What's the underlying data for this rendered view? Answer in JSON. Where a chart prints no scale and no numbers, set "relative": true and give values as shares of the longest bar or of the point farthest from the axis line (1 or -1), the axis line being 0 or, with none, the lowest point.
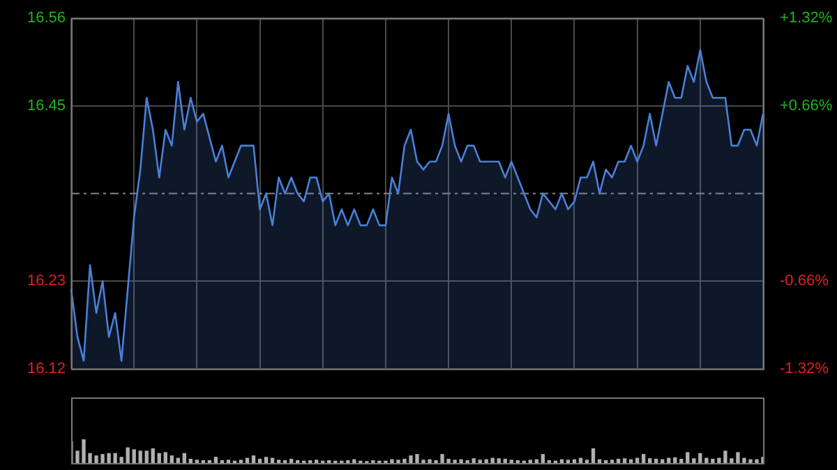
{
  "chart_data": [
    {
      "type": "area",
      "categories": [
        null,
        null,
        null,
        null,
        null,
        null,
        null,
        null,
        null,
        null,
        null,
        null,
        null,
        null,
        null,
        null,
        null,
        null,
        null,
        null,
        null,
        null,
        null,
        null,
        null,
        null,
        null,
        null,
        null,
        null,
        null,
        null,
        null,
        null,
        null,
        null,
        null,
        null,
        null,
        null,
        null,
        null,
        null,
        null,
        null,
        null,
        null,
        null,
        null,
        null,
        null,
        null,
        null,
        null,
        null,
        null,
        null,
        null,
        null,
        null,
        null,
        null,
        null,
        null,
        null,
        null,
        null,
        null,
        null,
        null,
        null,
        null,
        null,
        null,
        null,
        null,
        null,
        null,
        null,
        null,
        null,
        null,
        null,
        null,
        null,
        null,
        null,
        null,
        null,
        null,
        null,
        null,
        null,
        null,
        null,
        null,
        null,
        null,
        null,
        null,
        null,
        null,
        null,
        null,
        null,
        null,
        null,
        null,
        null,
        null,
        null
      ],
      "series": [
        {
          "color": "#4a80d8",
          "values": [
            16.22,
            16.16,
            16.13,
            16.25,
            16.19,
            16.23,
            16.16,
            16.19,
            16.13,
            16.22,
            16.31,
            16.37,
            16.46,
            16.42,
            16.36,
            16.42,
            16.4,
            16.48,
            16.42,
            16.46,
            16.43,
            16.44,
            16.41,
            16.38,
            16.4,
            16.36,
            16.38,
            16.4,
            16.4,
            16.4,
            16.32,
            16.34,
            16.3,
            16.36,
            16.34,
            16.36,
            16.34,
            16.33,
            16.36,
            16.36,
            16.33,
            16.34,
            16.3,
            16.32,
            16.3,
            16.32,
            16.3,
            16.3,
            16.32,
            16.3,
            16.3,
            16.36,
            16.34,
            16.4,
            16.42,
            16.38,
            16.37,
            16.38,
            16.38,
            16.4,
            16.44,
            16.4,
            16.38,
            16.4,
            16.4,
            16.38,
            16.38,
            16.38,
            16.38,
            16.36,
            16.38,
            16.36,
            16.34,
            16.32,
            16.31,
            16.34,
            16.33,
            16.32,
            16.34,
            16.32,
            16.33,
            16.36,
            16.36,
            16.38,
            16.34,
            16.37,
            16.36,
            16.38,
            16.38,
            16.4,
            16.38,
            16.4,
            16.44,
            16.4,
            16.44,
            16.48,
            16.46,
            16.46,
            16.5,
            16.48,
            16.52,
            16.48,
            16.46,
            16.46,
            16.46,
            16.4,
            16.4,
            16.42,
            16.42,
            16.4,
            16.44
          ]
        }
      ],
      "ylim": [
        16.12,
        16.56
      ],
      "yticks": [
        16.12,
        16.23,
        16.45,
        16.56
      ],
      "y2lim": [
        -1.32,
        1.32
      ],
      "y2ticks": [
        {
          "value": -1.32,
          "label": "-1.32%"
        },
        {
          "value": -0.66,
          "label": "-0.66%"
        },
        {
          "value": 0.66,
          "label": "+0.66%"
        },
        {
          "value": 1.32,
          "label": "+1.32%"
        }
      ],
      "ref_lines": [
        {
          "axis": "y",
          "value": 16.34,
          "line_style": "dashed"
        }
      ],
      "grid": true,
      "legend": false,
      "tick_labels": "y",
      "marker": "none",
      "line_style": "solid"
    },
    {
      "type": "bar",
      "relative": true,
      "categories": [
        null,
        null,
        null,
        null,
        null,
        null,
        null,
        null,
        null,
        null,
        null,
        null,
        null,
        null,
        null,
        null,
        null,
        null,
        null,
        null,
        null,
        null,
        null,
        null,
        null,
        null,
        null,
        null,
        null,
        null,
        null,
        null,
        null,
        null,
        null,
        null,
        null,
        null,
        null,
        null,
        null,
        null,
        null,
        null,
        null,
        null,
        null,
        null,
        null,
        null,
        null,
        null,
        null,
        null,
        null,
        null,
        null,
        null,
        null,
        null,
        null,
        null,
        null,
        null,
        null,
        null,
        null,
        null,
        null,
        null,
        null,
        null,
        null,
        null,
        null,
        null,
        null,
        null,
        null,
        null,
        null,
        null,
        null,
        null,
        null,
        null,
        null,
        null,
        null,
        null,
        null,
        null,
        null,
        null,
        null,
        null,
        null,
        null,
        null,
        null,
        null,
        null,
        null,
        null,
        null,
        null,
        null,
        null,
        null,
        null,
        null
      ],
      "series": [
        {
          "color": "#b0b0b0",
          "values": [
            0.9,
            0.5,
            1,
            0.4,
            0.3,
            0.36,
            0.4,
            0.4,
            0.24,
            0.64,
            0.56,
            0.5,
            0.5,
            0.6,
            0.4,
            0.44,
            0.3,
            0.2,
            0.4,
            0.16,
            0.12,
            0.1,
            0.1,
            0.24,
            0.1,
            0.12,
            0.08,
            0.12,
            0.2,
            0.3,
            0.16,
            0.24,
            0.2,
            0.12,
            0.1,
            0.16,
            0.1,
            0.08,
            0.1,
            0.12,
            0.08,
            0.1,
            0.08,
            0.08,
            0.1,
            0.14,
            0.08,
            0.06,
            0.1,
            0.08,
            0.08,
            0.14,
            0.12,
            0.16,
            0.3,
            0.36,
            0.12,
            0.14,
            0.1,
            0.36,
            0.16,
            0.12,
            0.14,
            0.1,
            0.18,
            0.12,
            0.14,
            0.2,
            0.18,
            0.16,
            0.12,
            0.1,
            0.08,
            0.12,
            0.14,
            0.36,
            0.1,
            0.08,
            0.14,
            0.12,
            0.14,
            0.2,
            0.12,
            0.6,
            0.14,
            0.1,
            0.12,
            0.16,
            0.18,
            0.14,
            0.2,
            0.36,
            0.18,
            0.16,
            0.14,
            0.2,
            0.22,
            0.16,
            0.44,
            0.18,
            0.4,
            0.2,
            0.16,
            0.2,
            0.5,
            0.18,
            0.44,
            0.2,
            0.14,
            0.14,
            0.24
          ]
        }
      ],
      "legend": false,
      "tick_labels": false
    }
  ]
}
